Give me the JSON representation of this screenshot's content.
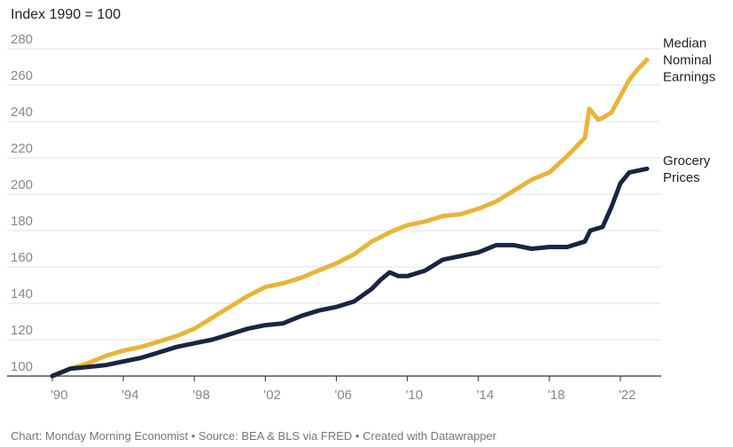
{
  "chart_data": {
    "type": "line",
    "subtitle": "Index 1990 = 100",
    "x_ticks": [
      "'90",
      "'94",
      "'98",
      "'02",
      "'06",
      "'10",
      "'14",
      "'18",
      "'22"
    ],
    "x_tick_values": [
      1990,
      1994,
      1998,
      2002,
      2006,
      2010,
      2014,
      2018,
      2022
    ],
    "xlim": [
      1990,
      2024
    ],
    "ylim": [
      100,
      280
    ],
    "y_ticks": [
      100,
      120,
      140,
      160,
      180,
      200,
      220,
      240,
      260,
      280
    ],
    "grid": true,
    "series": [
      {
        "name": "Median Nominal Earnings",
        "label_lines": [
          "Median",
          "Nominal",
          "Earnings"
        ],
        "color": "#E8B53A",
        "x": [
          1990,
          1991,
          1992,
          1993,
          1994,
          1995,
          1996,
          1997,
          1998,
          1999,
          2000,
          2001,
          2002,
          2003,
          2004,
          2005,
          2006,
          2007,
          2008,
          2009,
          2010,
          2011,
          2012,
          2013,
          2014,
          2015,
          2016,
          2017,
          2018,
          2019,
          2020,
          2020.25,
          2020.75,
          2021,
          2021.5,
          2022,
          2022.5,
          2023,
          2023.5
        ],
        "y": [
          100,
          104,
          107,
          111,
          114,
          116,
          119,
          122,
          126,
          132,
          138,
          144,
          149,
          151,
          154,
          158,
          162,
          167,
          174,
          179,
          183,
          185,
          188,
          189,
          192,
          196,
          202,
          208,
          212,
          221,
          231,
          247,
          241,
          242,
          245,
          254,
          263,
          269,
          274
        ]
      },
      {
        "name": "Grocery Prices",
        "label_lines": [
          "Grocery",
          "Prices"
        ],
        "color": "#1A2542",
        "x": [
          1990,
          1991,
          1992,
          1993,
          1994,
          1995,
          1996,
          1997,
          1998,
          1999,
          2000,
          2001,
          2002,
          2003,
          2004,
          2005,
          2006,
          2007,
          2008,
          2008.5,
          2009,
          2009.5,
          2010,
          2011,
          2012,
          2013,
          2014,
          2015,
          2016,
          2017,
          2018,
          2019,
          2020,
          2020.3,
          2021,
          2021.5,
          2022,
          2022.5,
          2023,
          2023.5
        ],
        "y": [
          100,
          104,
          105,
          106,
          108,
          110,
          113,
          116,
          118,
          120,
          123,
          126,
          128,
          129,
          133,
          136,
          138,
          141,
          148,
          153,
          157,
          155,
          155,
          158,
          164,
          166,
          168,
          172,
          172,
          170,
          171,
          171,
          174,
          180,
          182,
          193,
          206,
          212,
          213,
          214
        ]
      }
    ],
    "footer": "Chart: Monday Morning Economist • Source: BEA & BLS via FRED • Created with Datawrapper"
  }
}
